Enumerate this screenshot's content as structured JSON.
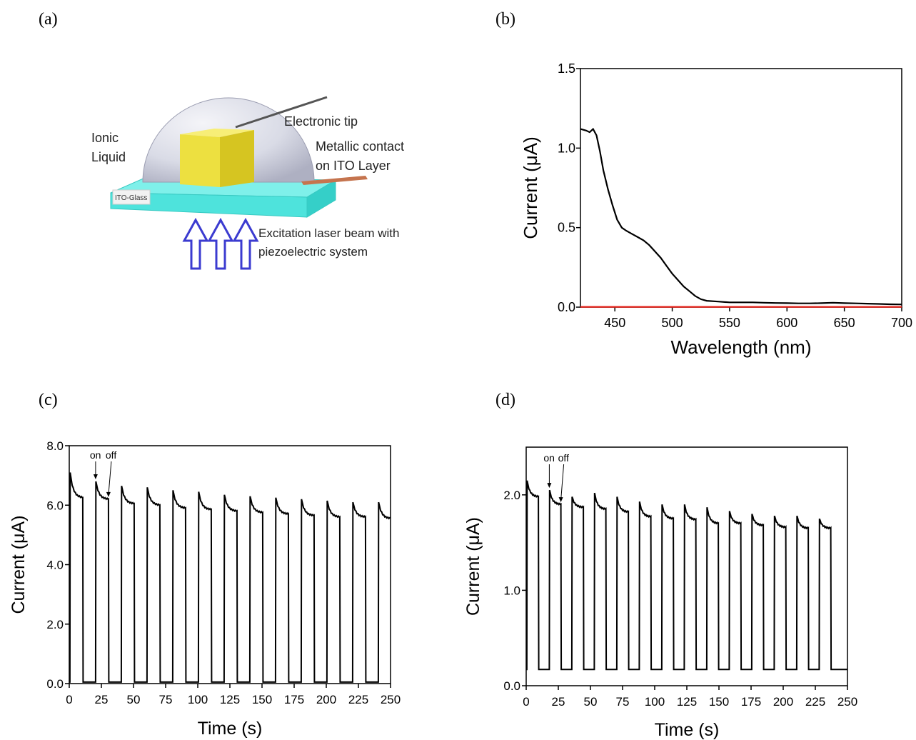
{
  "panels": {
    "a": {
      "letter": "(a)"
    },
    "b": {
      "letter": "(b)"
    },
    "c": {
      "letter": "(c)"
    },
    "d": {
      "letter": "(d)"
    }
  },
  "diagram": {
    "ionic_liquid": [
      "Ionic",
      "Liquid"
    ],
    "electronic_tip": "Electronic tip",
    "metallic_contact": [
      "Metallic contact",
      "on ITO Layer"
    ],
    "ito_glass": "ITO-Glass",
    "laser": [
      "Excitation laser beam with",
      "piezoelectric system"
    ],
    "colors": {
      "cube": "#ede040",
      "glass": "#4ee3dc",
      "dome": "#d9dbe6",
      "arrow": "#3b3bd0",
      "contact": "#c5744e"
    }
  },
  "chart_data": [
    {
      "id": "b",
      "type": "line",
      "xlabel": "Wavelength (nm)",
      "ylabel": "Current (μA)",
      "xlim": [
        420,
        700
      ],
      "ylim": [
        0,
        1.5
      ],
      "xticks": [
        450,
        500,
        550,
        600,
        650,
        700
      ],
      "yticks": [
        "0.0",
        "0.5",
        "1.0",
        "1.5"
      ],
      "series": [
        {
          "color": "#000000",
          "x": [
            420,
            425,
            428,
            431,
            434,
            437,
            440,
            444,
            448,
            452,
            456,
            460,
            465,
            470,
            475,
            480,
            485,
            490,
            495,
            500,
            505,
            510,
            515,
            520,
            525,
            530,
            540,
            550,
            560,
            570,
            580,
            590,
            600,
            610,
            620,
            630,
            640,
            650,
            660,
            670,
            680,
            690,
            700
          ],
          "y": [
            1.12,
            1.11,
            1.1,
            1.12,
            1.08,
            0.98,
            0.86,
            0.74,
            0.64,
            0.55,
            0.5,
            0.48,
            0.46,
            0.44,
            0.42,
            0.39,
            0.35,
            0.31,
            0.26,
            0.21,
            0.17,
            0.13,
            0.1,
            0.07,
            0.05,
            0.04,
            0.035,
            0.03,
            0.03,
            0.03,
            0.028,
            0.026,
            0.025,
            0.024,
            0.024,
            0.025,
            0.028,
            0.025,
            0.024,
            0.022,
            0.02,
            0.018,
            0.017
          ]
        },
        {
          "color": "#e8241c",
          "x": [
            420,
            700
          ],
          "y": [
            0.002,
            0.002
          ]
        }
      ]
    },
    {
      "id": "c",
      "type": "line",
      "xlabel": "Time (s)",
      "ylabel": "Current (μA)",
      "xlim": [
        0,
        250
      ],
      "ylim": [
        0,
        8
      ],
      "xticks": [
        0,
        25,
        50,
        75,
        100,
        125,
        150,
        175,
        200,
        225,
        250
      ],
      "yticks": [
        "0.0",
        "2.0",
        "4.0",
        "6.0",
        "8.0"
      ],
      "annotations": [
        "on",
        "off"
      ],
      "pulse": {
        "period": 20,
        "on_duration": 10,
        "first_on": 0.5,
        "cycles": 13,
        "on_peak": [
          7.1,
          6.8,
          6.65,
          6.6,
          6.5,
          6.45,
          6.35,
          6.3,
          6.25,
          6.2,
          6.15,
          6.1,
          6.1
        ],
        "on_plateau": [
          6.25,
          6.2,
          6.05,
          6.0,
          5.9,
          5.85,
          5.8,
          5.75,
          5.7,
          5.65,
          5.6,
          5.6,
          5.55
        ],
        "off_level": 0.05
      }
    },
    {
      "id": "d",
      "type": "line",
      "xlabel": "Time (s)",
      "ylabel": "Current (μA)",
      "xlim": [
        0,
        250
      ],
      "ylim": [
        0,
        2.5
      ],
      "xticks": [
        0,
        25,
        50,
        75,
        100,
        125,
        150,
        175,
        200,
        225,
        250
      ],
      "yticks": [
        "0.0",
        "1.0",
        "2.0"
      ],
      "annotations": [
        "on",
        "off"
      ],
      "pulse": {
        "period": 17.5,
        "on_duration": 9,
        "first_on": 0.5,
        "cycles": 14,
        "on_peak": [
          2.15,
          2.05,
          1.98,
          2.02,
          1.98,
          1.93,
          1.9,
          1.9,
          1.87,
          1.83,
          1.8,
          1.78,
          1.78,
          1.75
        ],
        "on_plateau": [
          1.98,
          1.9,
          1.87,
          1.85,
          1.82,
          1.77,
          1.75,
          1.74,
          1.7,
          1.7,
          1.68,
          1.66,
          1.65,
          1.65
        ],
        "off_level": 0.17
      }
    }
  ]
}
